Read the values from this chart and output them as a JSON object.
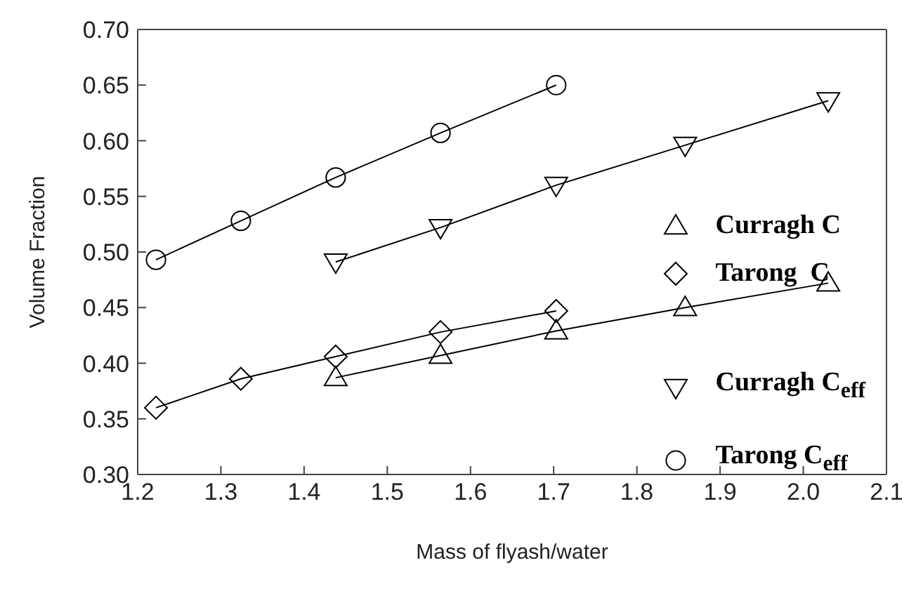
{
  "chart_data": {
    "type": "line",
    "xlabel": "Mass of flyash/water",
    "ylabel": "Volume Fraction",
    "xlim": [
      1.2,
      2.1
    ],
    "xticks": [
      {
        "value": 1.2,
        "label": "1.2"
      },
      1.3,
      1.4,
      1.5,
      1.6,
      1.7,
      1.8,
      1.9,
      {
        "value": 2.0,
        "label": "2.0"
      },
      2.1
    ],
    "ylim": [
      0.3,
      0.7
    ],
    "yticks": [
      {
        "value": 0.3,
        "label": "0.30"
      },
      0.35,
      {
        "value": 0.4,
        "label": "0.40"
      },
      0.45,
      {
        "value": 0.5,
        "label": "0.50"
      },
      0.55,
      {
        "value": 0.6,
        "label": "0.60"
      },
      0.65,
      {
        "value": 0.7,
        "label": "0.70"
      }
    ],
    "grid": false,
    "legend": "right",
    "line_style": "solid",
    "series": [
      {
        "name": "Curragh C",
        "color": "#000000",
        "marker": "triangle",
        "x": [
          1.438,
          1.564,
          1.703,
          1.858,
          2.03
        ],
        "values": [
          0.387,
          0.407,
          0.429,
          0.45,
          0.472
        ]
      },
      {
        "name": "Tarong  C",
        "color": "#000000",
        "marker": "diamond",
        "x": [
          1.222,
          1.324,
          1.438,
          1.564,
          1.703
        ],
        "values": [
          0.36,
          0.386,
          0.406,
          0.428,
          0.447
        ]
      },
      {
        "name": "Curragh C$_{eff}$",
        "color": "#000000",
        "marker": "triangle-down",
        "x": [
          1.438,
          1.564,
          1.703,
          1.858,
          2.03
        ],
        "values": [
          0.491,
          0.522,
          0.56,
          0.596,
          0.636
        ]
      },
      {
        "name": "Tarong C$_{eff}$",
        "color": "#000000",
        "marker": "circle",
        "x": [
          1.222,
          1.324,
          1.438,
          1.564,
          1.703
        ],
        "values": [
          0.493,
          0.528,
          0.567,
          0.607,
          0.65
        ]
      }
    ]
  }
}
